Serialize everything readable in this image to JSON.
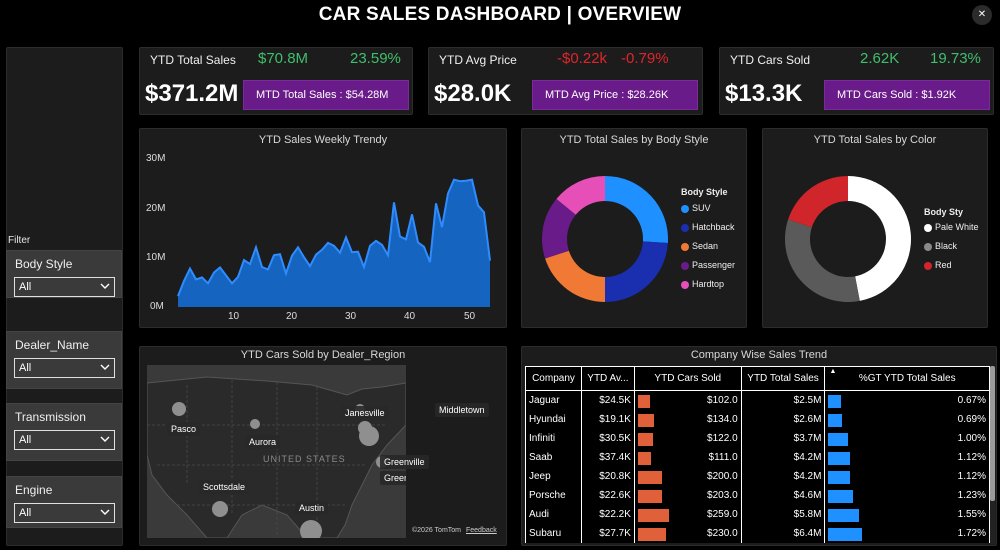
{
  "title": "CAR SALES DASHBOARD | OVERVIEW",
  "close_icon": "close-icon",
  "filter_label": "Filter",
  "slicers": [
    {
      "title": "Body Style",
      "value": "All"
    },
    {
      "title": "Dealer_Name",
      "value": "All"
    },
    {
      "title": "Transmission",
      "value": "All"
    },
    {
      "title": "Engine",
      "value": "All"
    }
  ],
  "kpis": [
    {
      "title": "YTD Total Sales",
      "main": "$371.2M",
      "v1": "$70.8M",
      "v2": "23.59%",
      "v_color": "#3fbf6c",
      "mtd": "MTD Total Sales : $54.28M"
    },
    {
      "title": "YTD Avg Price",
      "main": "$28.0K",
      "v1": "-$0.22k",
      "v2": "-0.79%",
      "v_color": "#e0252a",
      "mtd": "MTD Avg Price : $28.26K"
    },
    {
      "title": "YTD Cars Sold",
      "main": "$13.3K",
      "v1": "2.62K",
      "v2": "19.73%",
      "v_color": "#3fbf6c",
      "mtd": "MTD Cars Sold : $1.92K"
    }
  ],
  "weekly": {
    "title": "YTD Sales Weekly Trendy",
    "y_ticks": [
      "30M",
      "20M",
      "10M",
      "0M"
    ],
    "x_ticks": [
      "10",
      "20",
      "30",
      "40",
      "50"
    ]
  },
  "body_style": {
    "title": "YTD Total Sales by Body Style",
    "legend_title": "Body Style",
    "items": [
      "SUV",
      "Hatchback",
      "Sedan",
      "Passenger",
      "Hardtop"
    ],
    "colors": [
      "#1e90ff",
      "#1a2fb0",
      "#f07a35",
      "#6a1b8a",
      "#e64fb8"
    ]
  },
  "color_chart": {
    "title": "YTD Total Sales by Color",
    "legend_title": "Body Sty",
    "items": [
      "Pale White",
      "Black",
      "Red"
    ],
    "colors": [
      "#ffffff",
      "#5a5a5a",
      "#d0262b"
    ]
  },
  "map": {
    "title": "YTD Cars Sold by Dealer_Region",
    "labels": [
      "Pasco",
      "Janesville",
      "Middletown",
      "Aurora",
      "UNITED STATES",
      "Scottsdale",
      "Greenville",
      "Austin"
    ],
    "attribution": "©2026 TomTom",
    "feedback": "Feedback"
  },
  "company": {
    "title": "Company Wise Sales Trend",
    "headers": [
      "Company",
      "YTD Av...",
      "YTD Cars Sold",
      "YTD Total Sales",
      "%GT YTD Total Sales"
    ],
    "rows": [
      {
        "company": "Jaguar",
        "avg": "$24.5K",
        "cars": "$102.0",
        "total": "$2.5M",
        "pct": "0.67%",
        "cars_v": 102.0,
        "pct_v": 0.67
      },
      {
        "company": "Hyundai",
        "avg": "$19.1K",
        "cars": "$134.0",
        "total": "$2.6M",
        "pct": "0.69%",
        "cars_v": 134.0,
        "pct_v": 0.69
      },
      {
        "company": "Infiniti",
        "avg": "$30.5K",
        "cars": "$122.0",
        "total": "$3.7M",
        "pct": "1.00%",
        "cars_v": 122.0,
        "pct_v": 1.0
      },
      {
        "company": "Saab",
        "avg": "$37.4K",
        "cars": "$111.0",
        "total": "$4.2M",
        "pct": "1.12%",
        "cars_v": 111.0,
        "pct_v": 1.12
      },
      {
        "company": "Jeep",
        "avg": "$20.8K",
        "cars": "$200.0",
        "total": "$4.2M",
        "pct": "1.12%",
        "cars_v": 200.0,
        "pct_v": 1.12
      },
      {
        "company": "Porsche",
        "avg": "$22.6K",
        "cars": "$203.0",
        "total": "$4.6M",
        "pct": "1.23%",
        "cars_v": 203.0,
        "pct_v": 1.23
      },
      {
        "company": "Audi",
        "avg": "$22.2K",
        "cars": "$259.0",
        "total": "$5.8M",
        "pct": "1.55%",
        "cars_v": 259.0,
        "pct_v": 1.55
      },
      {
        "company": "Subaru",
        "avg": "$27.7K",
        "cars": "$230.0",
        "total": "$6.4M",
        "pct": "1.72%",
        "cars_v": 230.0,
        "pct_v": 1.72
      }
    ],
    "cars_bar_color": "#e0603a",
    "pct_bar_color": "#1e90ff"
  },
  "chart_data": [
    {
      "type": "area",
      "x": [
        1,
        2,
        3,
        4,
        5,
        6,
        7,
        8,
        9,
        10,
        11,
        12,
        13,
        14,
        15,
        16,
        17,
        18,
        19,
        20,
        21,
        22,
        23,
        24,
        25,
        26,
        27,
        28,
        29,
        30,
        31,
        32,
        33,
        34,
        35,
        36,
        37,
        38,
        39,
        40,
        41,
        42,
        43,
        44,
        45,
        46,
        47,
        48,
        49,
        50,
        51,
        52,
        53
      ],
      "values": [
        2.2,
        5.3,
        7.8,
        5.6,
        6.0,
        4.8,
        7.0,
        8.0,
        6.4,
        4.8,
        6.1,
        9.5,
        8.7,
        12.1,
        8.1,
        7.6,
        10.5,
        10.7,
        6.8,
        10.4,
        12.1,
        10.1,
        8.3,
        10.6,
        11.6,
        13.0,
        12.4,
        11.0,
        14.1,
        11.1,
        11.2,
        8.1,
        12.4,
        13.4,
        12.6,
        10.5,
        21.2,
        14.3,
        13.7,
        18.8,
        13.1,
        12.2,
        9.1,
        21.0,
        16.2,
        23.0,
        25.8,
        25.5,
        25.6,
        25.8,
        20.6,
        19.2,
        9.4
      ],
      "ylim": [
        0,
        30
      ]
    },
    {
      "type": "pie",
      "categories": [
        "SUV",
        "Hatchback",
        "Sedan",
        "Passenger",
        "Hardtop"
      ],
      "values": [
        26,
        24,
        20,
        16,
        14
      ]
    },
    {
      "type": "pie",
      "categories": [
        "Pale White",
        "Black",
        "Red"
      ],
      "values": [
        47,
        33,
        20
      ]
    }
  ]
}
